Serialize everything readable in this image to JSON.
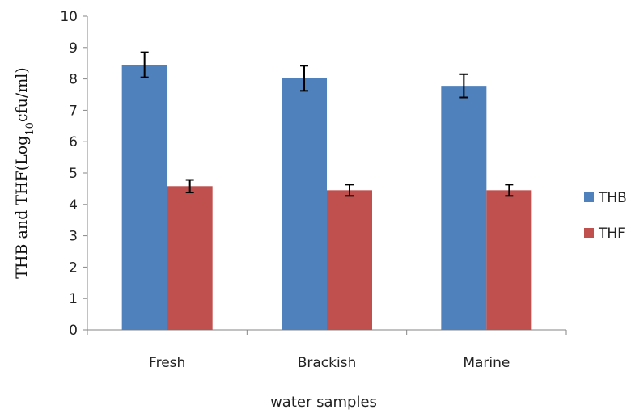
{
  "chart_data": {
    "type": "bar",
    "categories": [
      "Fresh",
      "Brackish",
      "Marine"
    ],
    "series": [
      {
        "name": "THB",
        "color": "#4f81bd",
        "values": [
          8.45,
          8.02,
          7.78
        ],
        "errors": [
          0.4,
          0.4,
          0.37
        ]
      },
      {
        "name": "THF",
        "color": "#c0504d",
        "values": [
          4.58,
          4.45,
          4.45
        ],
        "errors": [
          0.2,
          0.18,
          0.18
        ]
      }
    ],
    "title": "",
    "xlabel": "water samples",
    "ylabel_main": "THB and THF(Log",
    "ylabel_sub": "10",
    "ylabel_tail": "cfu/ml)",
    "ylim": [
      0,
      10
    ],
    "yticks": [
      "0",
      "1",
      "2",
      "3",
      "4",
      "5",
      "6",
      "7",
      "8",
      "9",
      "10"
    ],
    "grid": false,
    "legend_position": "right"
  }
}
